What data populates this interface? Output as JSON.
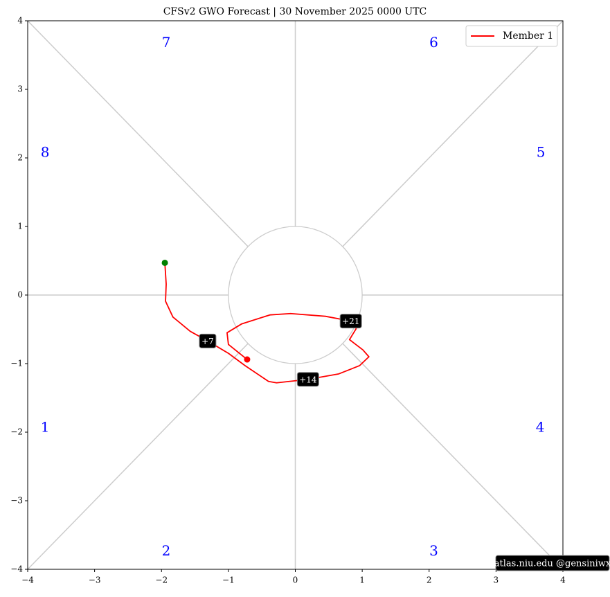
{
  "chart_data": {
    "type": "line",
    "title": "CFSv2 GWO Forecast   |   30  November  2025 0000 UTC",
    "xlim": [
      -4,
      4
    ],
    "ylim": [
      -4,
      4
    ],
    "xticks": [
      {
        "value": -4,
        "label": "−4"
      },
      {
        "value": -3,
        "label": "−3"
      },
      {
        "value": -2,
        "label": "−2"
      },
      {
        "value": -1,
        "label": "−1"
      },
      0,
      1,
      2,
      3,
      4
    ],
    "yticks": [
      {
        "value": -4,
        "label": "−4"
      },
      {
        "value": -3,
        "label": "−3"
      },
      {
        "value": -2,
        "label": "−2"
      },
      {
        "value": -1,
        "label": "−1"
      },
      0,
      1,
      2,
      3,
      4
    ],
    "legend": "upper right",
    "start_color": "#008000",
    "series": [
      {
        "name": "Member 1",
        "color": "#ff0000",
        "x": [
          -1.95,
          -1.93,
          -1.94,
          -1.83,
          -1.57,
          -1.31,
          -1.0,
          -0.75,
          -0.4,
          -0.28,
          0.19,
          0.65,
          0.96,
          1.1,
          1.01,
          0.81,
          0.91,
          0.83,
          0.45,
          -0.07,
          -0.38,
          -0.8,
          -1.02,
          -1.0,
          -0.72
        ],
        "y": [
          0.47,
          0.16,
          -0.09,
          -0.32,
          -0.53,
          -0.67,
          -0.85,
          -1.03,
          -1.26,
          -1.28,
          -1.23,
          -1.15,
          -1.03,
          -0.9,
          -0.8,
          -0.65,
          -0.49,
          -0.38,
          -0.31,
          -0.27,
          -0.29,
          -0.42,
          -0.55,
          -0.72,
          -0.94
        ]
      }
    ],
    "annotations": [
      {
        "text": "+7",
        "x": -1.31,
        "y": -0.67
      },
      {
        "text": "+14",
        "x": 0.19,
        "y": -1.23
      },
      {
        "text": "+21",
        "x": 0.83,
        "y": -0.38
      }
    ],
    "phase_labels": [
      {
        "text": "1",
        "x": -3.74,
        "y": -1.94
      },
      {
        "text": "2",
        "x": -1.93,
        "y": -3.74
      },
      {
        "text": "3",
        "x": 2.07,
        "y": -3.74
      },
      {
        "text": "4",
        "x": 3.66,
        "y": -1.94
      },
      {
        "text": "5",
        "x": 3.67,
        "y": 2.07
      },
      {
        "text": "6",
        "x": 2.07,
        "y": 3.67
      },
      {
        "text": "7",
        "x": -1.93,
        "y": 3.67
      },
      {
        "text": "8",
        "x": -3.74,
        "y": 2.07
      }
    ],
    "watermark": "atlas.niu.edu  @gensiniwx"
  }
}
